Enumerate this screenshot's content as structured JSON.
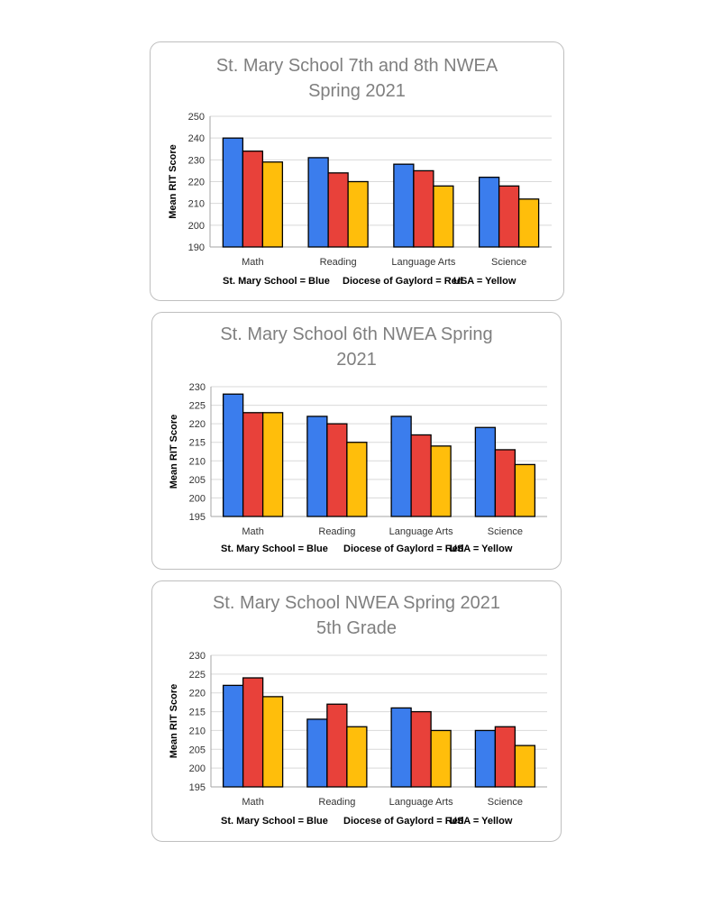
{
  "chart_data": [
    {
      "type": "bar",
      "title_lines": [
        "St. Mary School 7th and 8th NWEA",
        "Spring 2021"
      ],
      "ylabel": "Mean RIT Score",
      "ylim": [
        190,
        250
      ],
      "yticks": [
        190,
        200,
        210,
        220,
        230,
        240,
        250
      ],
      "categories": [
        "Math",
        "Reading",
        "Language Arts",
        "Science"
      ],
      "series": [
        {
          "values": [
            240,
            231,
            228,
            222
          ],
          "color": "#3b7ded"
        },
        {
          "values": [
            234,
            224,
            225,
            218
          ],
          "color": "#e8413a"
        },
        {
          "values": [
            229,
            220,
            218,
            212
          ],
          "color": "#ffbe0b"
        }
      ],
      "legend_texts": [
        "St. Mary School = Blue",
        "Diocese of Gaylord = Red",
        "USA = Yellow"
      ],
      "grid": true
    },
    {
      "type": "bar",
      "title_lines": [
        "St. Mary School 6th NWEA Spring",
        "2021"
      ],
      "ylabel": "Mean RIT Score",
      "ylim": [
        195,
        230
      ],
      "yticks": [
        195,
        200,
        205,
        210,
        215,
        220,
        225,
        230
      ],
      "categories": [
        "Math",
        "Reading",
        "Language Arts",
        "Science"
      ],
      "series": [
        {
          "values": [
            228,
            222,
            222,
            219
          ],
          "color": "#3b7ded"
        },
        {
          "values": [
            223,
            220,
            217,
            213
          ],
          "color": "#e8413a"
        },
        {
          "values": [
            223,
            215,
            214,
            209
          ],
          "color": "#ffbe0b"
        }
      ],
      "legend_texts": [
        "St. Mary School = Blue",
        "Diocese of Gaylord = Red",
        "USA = Yellow"
      ],
      "grid": true
    },
    {
      "type": "bar",
      "title_lines": [
        "St. Mary School NWEA Spring 2021",
        "5th Grade"
      ],
      "ylabel": "Mean RIT Score",
      "ylim": [
        195,
        230
      ],
      "yticks": [
        195,
        200,
        205,
        210,
        215,
        220,
        225,
        230
      ],
      "categories": [
        "Math",
        "Reading",
        "Language Arts",
        "Science"
      ],
      "series": [
        {
          "values": [
            222,
            213,
            216,
            210
          ],
          "color": "#3b7ded"
        },
        {
          "values": [
            224,
            217,
            215,
            211
          ],
          "color": "#e8413a"
        },
        {
          "values": [
            219,
            211,
            210,
            206
          ],
          "color": "#ffbe0b"
        }
      ],
      "legend_texts": [
        "St. Mary School = Blue",
        "Diocese of Gaylord = Red",
        "USA = Yellow"
      ],
      "grid": true
    }
  ]
}
